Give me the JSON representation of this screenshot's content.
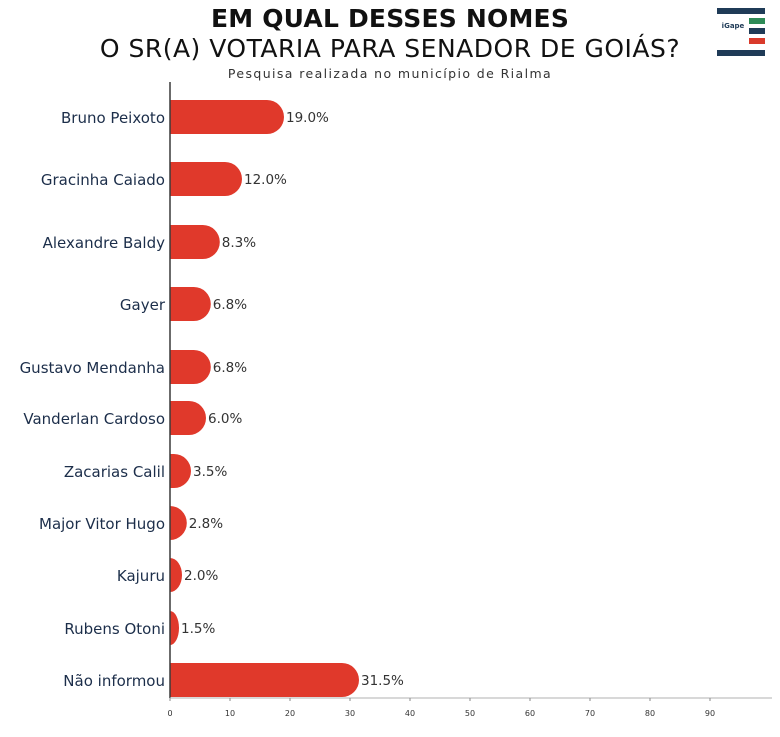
{
  "header": {
    "title": "EM QUAL DESSES NOMES",
    "question": "O SR(A) VOTARIA PARA SENADOR DE GOIÁS?",
    "source": "Pesquisa realizada no município de Rialma"
  },
  "logo": {
    "text": "iGape"
  },
  "colors": {
    "bar": "#e0392b",
    "axis": "#3a3a3a",
    "label": "#1c2e4a",
    "value": "#333333"
  },
  "chart_data": {
    "type": "bar",
    "orientation": "horizontal",
    "categories": [
      "Bruno Peixoto",
      "Gracinha Caiado",
      "Alexandre Baldy",
      "Gayer",
      "Gustavo Mendanha",
      "Vanderlan Cardoso",
      "Zacarias Calil",
      "Major Vitor Hugo",
      "Kajuru",
      "Rubens Otoni",
      "Não informou"
    ],
    "values": [
      19.0,
      12.0,
      8.3,
      6.8,
      6.8,
      6.0,
      3.5,
      2.8,
      2.0,
      1.5,
      31.5
    ],
    "value_labels": [
      "19.0%",
      "12.0%",
      "8.3%",
      "6.8%",
      "6.8%",
      "6.0%",
      "3.5%",
      "2.8%",
      "2.0%",
      "1.5%",
      "31.5%"
    ],
    "xticks": [
      0,
      10,
      20,
      30,
      40,
      50,
      60,
      70,
      80,
      90
    ],
    "xlim": [
      0,
      100
    ],
    "grid": false
  }
}
